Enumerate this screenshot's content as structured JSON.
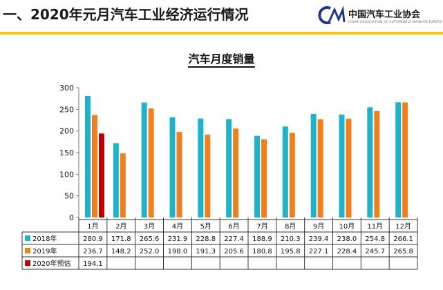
{
  "header": {
    "title": "一、2020年元月汽车工业经济运行情况",
    "logo_name": "中国汽车工业协会",
    "logo_subtitle": "CHINA ASSOCIATION OF AUTOMOBILE MANUFACTURERS",
    "logo_mark": "CA"
  },
  "colors": {
    "series_2018": "#1fb3c9",
    "series_2019": "#f07f1c",
    "series_2020": "#c00000",
    "divider": "#f1c40f"
  },
  "chart_data": {
    "type": "bar",
    "title": "汽车月度销量",
    "categories": [
      "1月",
      "2月",
      "3月",
      "4月",
      "5月",
      "6月",
      "7月",
      "8月",
      "9月",
      "10月",
      "11月",
      "12月"
    ],
    "series": [
      {
        "name": "2018年",
        "values": [
          280.9,
          171.8,
          265.6,
          231.9,
          228.8,
          227.4,
          188.9,
          210.3,
          239.4,
          238.0,
          254.8,
          266.1
        ],
        "labels": [
          "280.9",
          "171.8",
          "265.6",
          "231.9",
          "228.8",
          "227.4",
          "188.9",
          "210.3",
          "239.4",
          "238.0",
          "254.8",
          "266.1"
        ]
      },
      {
        "name": "2019年",
        "values": [
          236.7,
          148.2,
          252.0,
          198.0,
          191.3,
          205.6,
          180.8,
          195.8,
          227.1,
          228.4,
          245.7,
          265.8
        ],
        "labels": [
          "236.7",
          "148.2",
          "252.0",
          "198.0",
          "191.3",
          "205.6",
          "180.8",
          "195.8",
          "227.1",
          "228.4",
          "245.7",
          "265.8"
        ]
      },
      {
        "name": "2020年预估",
        "values": [
          194.1,
          null,
          null,
          null,
          null,
          null,
          null,
          null,
          null,
          null,
          null,
          null
        ],
        "labels": [
          "194.1",
          "",
          "",
          "",
          "",
          "",
          "",
          "",
          "",
          "",
          "",
          ""
        ]
      }
    ],
    "ylim": [
      0,
      300
    ],
    "yticks": [
      "0",
      "50",
      "100",
      "150",
      "200",
      "250",
      "300"
    ],
    "grid": false,
    "legend": "data-table"
  }
}
